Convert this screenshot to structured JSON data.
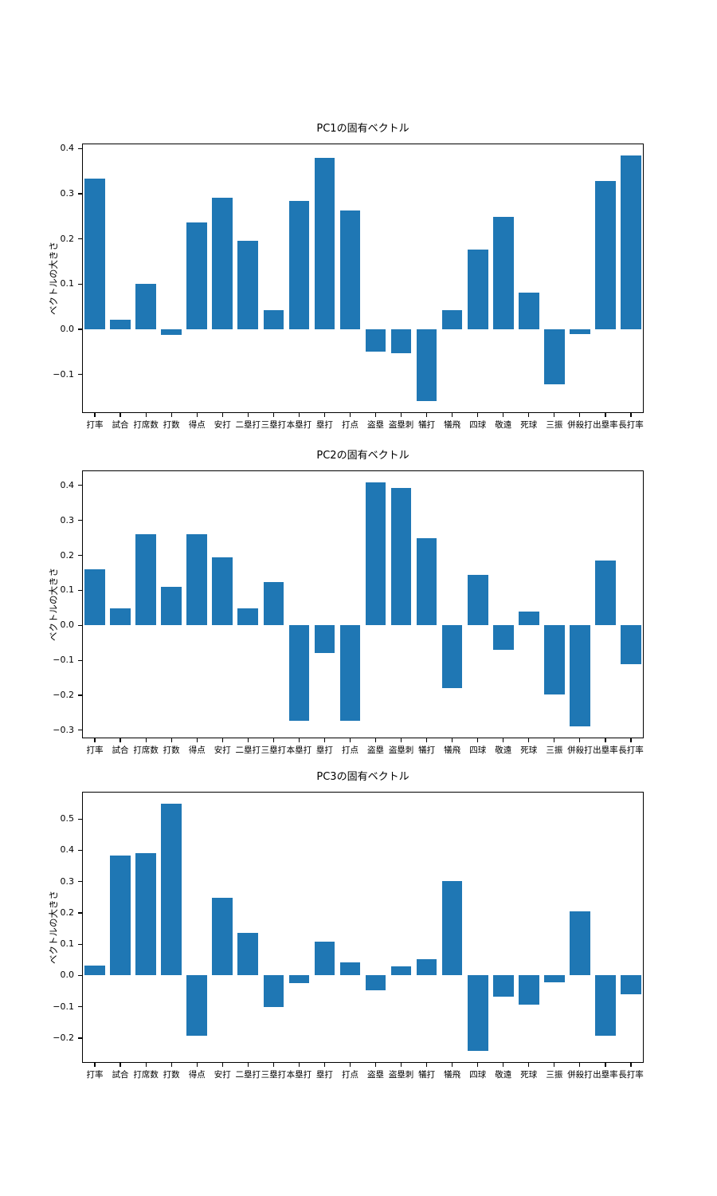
{
  "figure": {
    "background": "#ffffff",
    "bar_color": "#1f77b4",
    "axis_color": "#000000",
    "y_axis_label": "ベクトルの大きさ"
  },
  "chart_data": [
    {
      "type": "bar",
      "title": "PC1の固有ベクトル",
      "xlabel": "",
      "ylabel": "ベクトルの大きさ",
      "grid": false,
      "legend": null,
      "bar_color": "#1f77b4",
      "categories": [
        "打率",
        "試合",
        "打席数",
        "打数",
        "得点",
        "安打",
        "二塁打",
        "三塁打",
        "本塁打",
        "塁打",
        "打点",
        "盗塁",
        "盗塁刺",
        "犠打",
        "犠飛",
        "四球",
        "敬遠",
        "死球",
        "三振",
        "併殺打",
        "出塁率",
        "長打率"
      ],
      "values": [
        0.333,
        0.022,
        0.1,
        -0.013,
        0.237,
        0.291,
        0.196,
        0.043,
        0.284,
        0.379,
        0.263,
        -0.05,
        -0.053,
        -0.158,
        0.043,
        0.176,
        0.249,
        0.082,
        -0.122,
        -0.01,
        0.328,
        0.384
      ],
      "yticks": [
        -0.1,
        0.0,
        0.1,
        0.2,
        0.3,
        0.4
      ],
      "ylim": [
        -0.185,
        0.411
      ]
    },
    {
      "type": "bar",
      "title": "PC2の固有ベクトル",
      "xlabel": "",
      "ylabel": "ベクトルの大きさ",
      "grid": false,
      "legend": null,
      "bar_color": "#1f77b4",
      "categories": [
        "打率",
        "試合",
        "打席数",
        "打数",
        "得点",
        "安打",
        "二塁打",
        "三塁打",
        "本塁打",
        "塁打",
        "打点",
        "盗塁",
        "盗塁刺",
        "犠打",
        "犠飛",
        "四球",
        "敬遠",
        "死球",
        "三振",
        "併殺打",
        "出塁率",
        "長打率"
      ],
      "values": [
        0.16,
        0.048,
        0.26,
        0.111,
        0.26,
        0.195,
        0.048,
        0.124,
        -0.273,
        -0.078,
        -0.273,
        0.408,
        0.393,
        0.25,
        -0.179,
        0.145,
        -0.07,
        0.039,
        -0.197,
        -0.288,
        0.186,
        -0.112
      ],
      "yticks": [
        -0.3,
        -0.2,
        -0.1,
        0.0,
        0.1,
        0.2,
        0.3,
        0.4
      ],
      "ylim": [
        -0.323,
        0.443
      ]
    },
    {
      "type": "bar",
      "title": "PC3の固有ベクトル",
      "xlabel": "",
      "ylabel": "ベクトルの大きさ",
      "grid": false,
      "legend": null,
      "bar_color": "#1f77b4",
      "categories": [
        "打率",
        "試合",
        "打席数",
        "打数",
        "得点",
        "安打",
        "二塁打",
        "三塁打",
        "本塁打",
        "塁打",
        "打点",
        "盗塁",
        "盗塁刺",
        "犠打",
        "犠飛",
        "四球",
        "敬遠",
        "死球",
        "三振",
        "併殺打",
        "出塁率",
        "長打率"
      ],
      "values": [
        0.032,
        0.384,
        0.392,
        0.548,
        -0.192,
        0.248,
        0.137,
        -0.102,
        -0.024,
        0.107,
        0.043,
        -0.048,
        0.03,
        0.051,
        0.302,
        -0.24,
        -0.068,
        -0.093,
        -0.023,
        0.204,
        -0.192,
        -0.06
      ],
      "yticks": [
        -0.2,
        -0.1,
        0.0,
        0.1,
        0.2,
        0.3,
        0.4,
        0.5
      ],
      "ylim": [
        -0.279,
        0.587
      ]
    }
  ]
}
